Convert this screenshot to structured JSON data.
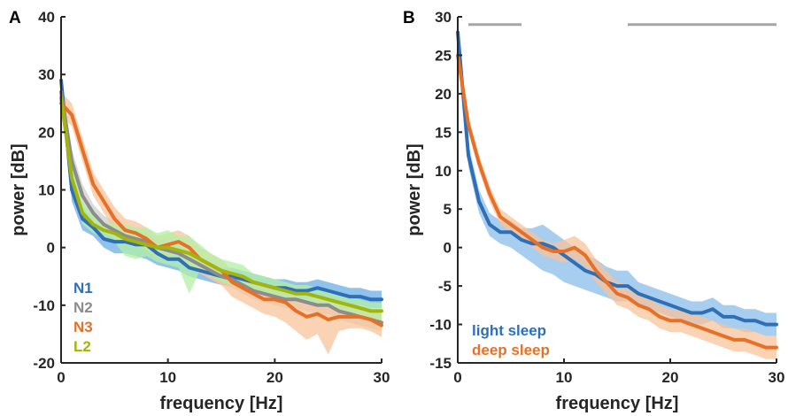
{
  "chart_data": [
    {
      "panel": "A",
      "type": "line",
      "xlabel": "frequency [Hz]",
      "ylabel": "power [dB]",
      "xlim": [
        0,
        30
      ],
      "ylim": [
        -20,
        40
      ],
      "xticks": [
        0,
        10,
        20,
        30
      ],
      "yticks": [
        -20,
        -10,
        0,
        10,
        20,
        30,
        40
      ],
      "legend_position": "bottom-left",
      "x": [
        0,
        1,
        2,
        3,
        4,
        5,
        6,
        7,
        8,
        9,
        10,
        11,
        12,
        13,
        14,
        15,
        16,
        17,
        18,
        19,
        20,
        21,
        22,
        23,
        24,
        25,
        26,
        27,
        28,
        29,
        30
      ],
      "series": [
        {
          "name": "N1",
          "color": "#2e6fb7",
          "band_color": "#6aaee6",
          "values": [
            29,
            10,
            5,
            3.5,
            1.5,
            1,
            1,
            0.5,
            0.5,
            -1,
            -2,
            -2,
            -3.5,
            -4,
            -4.5,
            -5,
            -5,
            -5.5,
            -6,
            -6.5,
            -7,
            -7,
            -7.5,
            -7.5,
            -7,
            -7.5,
            -8,
            -8.5,
            -8.5,
            -9,
            -9
          ],
          "lower": [
            27,
            8,
            3,
            2,
            0,
            -1,
            -1,
            -1.5,
            -2,
            -3,
            -3.5,
            -4,
            -5,
            -5.5,
            -6,
            -6.5,
            -6.5,
            -7,
            -7.5,
            -8,
            -8.5,
            -8.5,
            -9,
            -9,
            -8.5,
            -9,
            -9.5,
            -10,
            -10,
            -10.5,
            -10.5
          ],
          "upper": [
            30,
            12,
            7,
            5,
            3,
            2.5,
            2.5,
            2,
            2,
            0.5,
            -0.5,
            0,
            -2,
            -2.5,
            -3,
            -3.5,
            -3.5,
            -4,
            -4.5,
            -5,
            -5.5,
            -5.5,
            -6,
            -6,
            -5.5,
            -6,
            -6.5,
            -7,
            -7,
            -7.5,
            -7.5
          ]
        },
        {
          "name": "N2",
          "color": "#8c8c8c",
          "band_color": "#cfcfcf",
          "values": [
            27,
            15,
            9,
            6,
            4,
            3,
            2,
            1.5,
            1,
            0,
            -0.5,
            -1,
            -2,
            -3,
            -4,
            -5,
            -5.5,
            -6.5,
            -7.5,
            -8,
            -8.5,
            -9,
            -9,
            -9.5,
            -10,
            -10,
            -11,
            -11.5,
            -12,
            -12.5,
            -13
          ],
          "lower": [
            25,
            13,
            7,
            4.5,
            2.5,
            1.5,
            0.5,
            0,
            -0.5,
            -1.5,
            -2,
            -2.5,
            -3.5,
            -4.5,
            -5.5,
            -6.5,
            -7,
            -8,
            -9,
            -9.5,
            -10,
            -10.5,
            -10.5,
            -11,
            -11.5,
            -11.5,
            -12.5,
            -13,
            -13.5,
            -14,
            -14.5
          ],
          "upper": [
            29,
            17,
            11,
            7.5,
            5.5,
            4.5,
            3.5,
            3,
            2.5,
            1.5,
            1,
            0.5,
            -0.5,
            -1.5,
            -2.5,
            -3.5,
            -4,
            -5,
            -6,
            -6.5,
            -7,
            -7.5,
            -7.5,
            -8,
            -8.5,
            -8.5,
            -9.5,
            -10,
            -10.5,
            -11,
            -11.5
          ]
        },
        {
          "name": "N3",
          "color": "#e87026",
          "band_color": "#f8c39b",
          "values": [
            25,
            23,
            17,
            11,
            8,
            5,
            3,
            2.5,
            1.5,
            0,
            0.5,
            1,
            0,
            -2,
            -3,
            -4,
            -6,
            -7,
            -8,
            -9,
            -9,
            -9.5,
            -11,
            -12,
            -11.5,
            -12.5,
            -12,
            -12,
            -12,
            -12.5,
            -13.5
          ],
          "lower": [
            23,
            21,
            15,
            9,
            6,
            3,
            1,
            0.5,
            -0.5,
            -2,
            -1.5,
            -1,
            -2.5,
            -4.5,
            -5.5,
            -6.5,
            -8.5,
            -9.5,
            -10.5,
            -11.5,
            -12,
            -13,
            -14.5,
            -16,
            -15,
            -18.5,
            -14.5,
            -14,
            -14,
            -14.5,
            -15.5
          ],
          "upper": [
            27,
            25,
            19,
            13,
            10,
            7,
            5,
            4.5,
            3.5,
            2,
            2.5,
            3,
            2,
            0,
            -1,
            -2,
            -4,
            -5,
            -5.5,
            -6.5,
            -6.5,
            -7,
            -8.5,
            -9,
            -9,
            -10,
            -10,
            -10,
            -10,
            -10.5,
            -11.5
          ]
        },
        {
          "name": "L2",
          "color": "#a3b40c",
          "band_color": "#b2f0a4",
          "values": [
            26,
            12,
            6,
            4,
            3,
            2.5,
            1.5,
            1,
            0.5,
            0,
            0,
            -0.5,
            -1,
            -2,
            -3,
            -4,
            -4.5,
            -5,
            -6,
            -6.5,
            -7,
            -7.5,
            -8,
            -8,
            -8.5,
            -9,
            -9.5,
            -10,
            -10.5,
            -11,
            -11
          ],
          "lower": [
            24,
            10,
            4,
            2.5,
            1.5,
            1,
            -1.5,
            -2,
            -1.5,
            -2.5,
            -3,
            -3.5,
            -8,
            -4,
            -5,
            -6,
            -6.5,
            -7,
            -7.5,
            -8,
            -8.5,
            -9,
            -9.5,
            -9.5,
            -10,
            -10.5,
            -11,
            -11.5,
            -12,
            -12.5,
            -12.5
          ],
          "upper": [
            28,
            14,
            8,
            5.5,
            4.5,
            4,
            4,
            3.5,
            3.5,
            2.5,
            3,
            2,
            2,
            0.5,
            -1,
            -2,
            -2.5,
            -3,
            -4.5,
            -5,
            -5.5,
            -6,
            -6.5,
            -6.5,
            -7,
            -7.5,
            -8,
            -8.5,
            -9,
            -9.5,
            -9.5
          ]
        }
      ]
    },
    {
      "panel": "B",
      "type": "line",
      "xlabel": "frequency [Hz]",
      "ylabel": "power [dB]",
      "xlim": [
        0,
        30
      ],
      "ylim": [
        -15,
        30
      ],
      "xticks": [
        0,
        10,
        20,
        30
      ],
      "yticks": [
        -15,
        -10,
        -5,
        0,
        5,
        10,
        15,
        20,
        25,
        30
      ],
      "legend_position": "bottom-left",
      "significance_bars": {
        "color": "#a6a6a6",
        "y": 29,
        "ranges": [
          [
            1,
            6
          ],
          [
            16,
            30
          ]
        ]
      },
      "x": [
        0,
        1,
        2,
        3,
        4,
        5,
        6,
        7,
        8,
        9,
        10,
        11,
        12,
        13,
        14,
        15,
        16,
        17,
        18,
        19,
        20,
        21,
        22,
        23,
        24,
        25,
        26,
        27,
        28,
        29,
        30
      ],
      "series": [
        {
          "name": "light sleep",
          "color": "#2e6fb7",
          "band_color": "#89bde9",
          "values": [
            28,
            12,
            6,
            3,
            2,
            2,
            1,
            0.5,
            0.5,
            0,
            -1,
            -2,
            -3,
            -3.5,
            -4.5,
            -5,
            -5,
            -6,
            -6.5,
            -7,
            -7.5,
            -8,
            -8.5,
            -8.5,
            -8,
            -9,
            -9,
            -9.5,
            -9.5,
            -10,
            -10
          ],
          "lower": [
            27,
            10.5,
            4.5,
            1.5,
            0.5,
            0,
            -1,
            -2,
            -3,
            -3.5,
            -4.5,
            -5,
            -5.5,
            -6,
            -6.5,
            -7,
            -7,
            -7.5,
            -8,
            -8.5,
            -9,
            -9.5,
            -10,
            -10,
            -9.5,
            -10.5,
            -10.5,
            -11,
            -11,
            -11.5,
            -11.5
          ],
          "upper": [
            29,
            13.5,
            7.5,
            4.5,
            3.5,
            3.5,
            2.5,
            2.5,
            3,
            2,
            1,
            0,
            -1,
            -1.5,
            -2.5,
            -3,
            -3,
            -4.5,
            -5,
            -5.5,
            -6,
            -6.5,
            -7,
            -7,
            -6.5,
            -7.5,
            -7.5,
            -8,
            -8,
            -8.5,
            -8.5
          ]
        },
        {
          "name": "deep sleep",
          "color": "#e87026",
          "band_color": "#f8c39b",
          "values": [
            25,
            16,
            11,
            7,
            4,
            3,
            2,
            1,
            0,
            -0.5,
            -0.5,
            0,
            -1,
            -3,
            -4.5,
            -6,
            -6.5,
            -7.5,
            -8,
            -9,
            -9.5,
            -9.5,
            -10,
            -10.5,
            -11,
            -11.5,
            -12,
            -12,
            -12.5,
            -13,
            -13
          ],
          "lower": [
            24,
            15,
            10,
            6,
            3,
            2,
            1,
            0,
            -1,
            -1.5,
            -2,
            -1.5,
            -2.5,
            -4.5,
            -6,
            -7.5,
            -8,
            -9,
            -9.5,
            -10.5,
            -11,
            -11,
            -11.5,
            -12,
            -12.5,
            -13,
            -13.5,
            -13.5,
            -14,
            -14.5,
            -14.5
          ],
          "upper": [
            26,
            17,
            12,
            8,
            5,
            4,
            3,
            2,
            1,
            0.5,
            1,
            1.5,
            0.5,
            -1.5,
            -3,
            -4.5,
            -5,
            -6,
            -6.5,
            -7.5,
            -8,
            -8,
            -8.5,
            -9,
            -9.5,
            -10,
            -10.5,
            -10.5,
            -11,
            -11.5,
            -11.5
          ]
        }
      ]
    }
  ]
}
